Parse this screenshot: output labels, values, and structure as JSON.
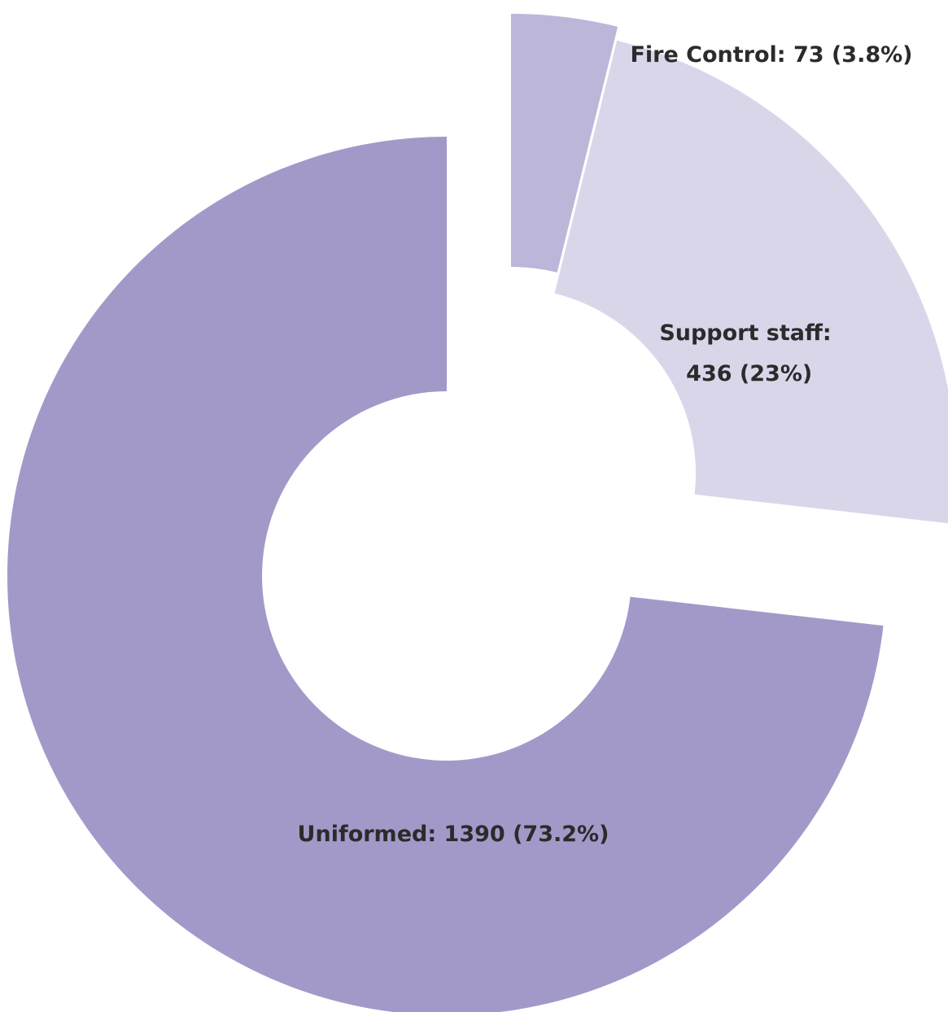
{
  "chart_data": {
    "type": "pie",
    "style": "donut-exploded",
    "title": "",
    "slices": [
      {
        "name": "Uniformed",
        "value": 1390,
        "percent": 73.2,
        "color": "#a399c9",
        "label_lines": [
          "Uniformed: 1390 (73.2%)"
        ]
      },
      {
        "name": "Fire Control",
        "value": 73,
        "percent": 3.8,
        "color": "#bcb6d9",
        "label_lines": [
          "Fire Control: 73 (3.8%)"
        ]
      },
      {
        "name": "Support staff",
        "value": 436,
        "percent": 23,
        "color": "#dad6ea",
        "label_lines": [
          "Support staff:",
          " 436 (23%)"
        ]
      }
    ]
  }
}
